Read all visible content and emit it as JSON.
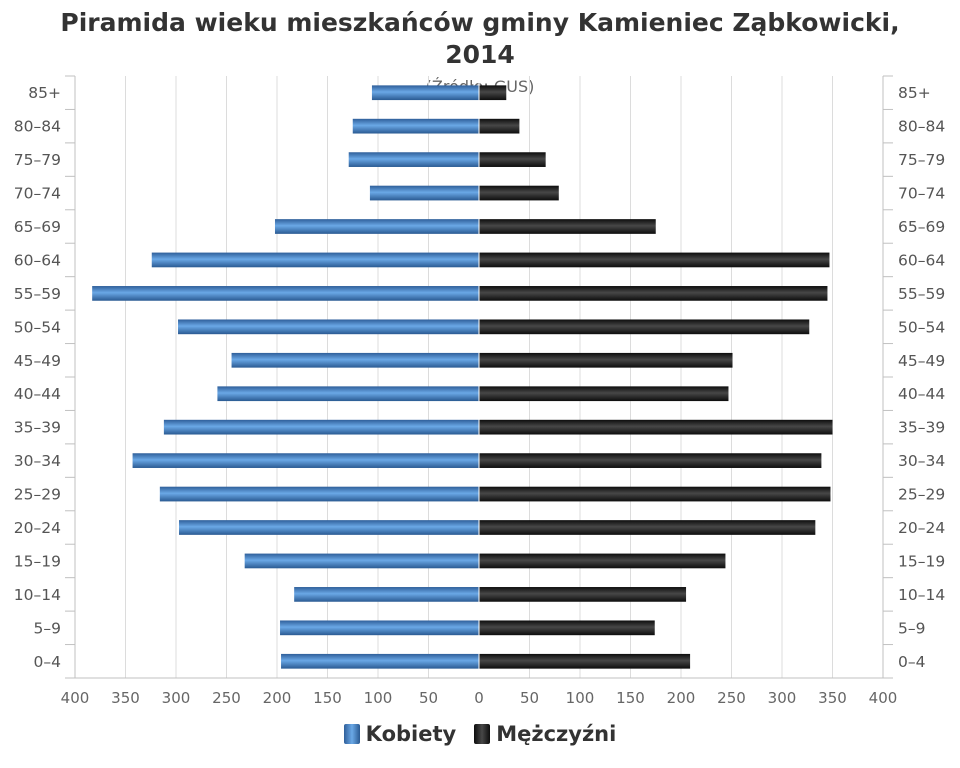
{
  "chart_data": {
    "type": "bar",
    "title_line1": "Piramida wieku mieszkańców gminy Kamieniec Ząbkowicki,",
    "title_line2": "2014",
    "subtitle": "(Źródło: GUS)",
    "categories": [
      "85+",
      "80-84",
      "75-79",
      "70-74",
      "65-69",
      "60-64",
      "55-59",
      "50-54",
      "45-49",
      "40-44",
      "35-39",
      "30-34",
      "25-29",
      "20-24",
      "15-19",
      "10-14",
      "5-9",
      "0-4"
    ],
    "category_labels": [
      "85+",
      "80–84",
      "75–79",
      "70–74",
      "65–69",
      "60–64",
      "55–59",
      "50–54",
      "45–49",
      "40–44",
      "35–39",
      "30–34",
      "25–29",
      "20–24",
      "15–19",
      "10–14",
      "5–9",
      "0–4"
    ],
    "series": [
      {
        "name": "Kobiety",
        "color": "#3a76b8",
        "values": [
          106,
          125,
          129,
          108,
          202,
          324,
          383,
          298,
          245,
          259,
          312,
          343,
          316,
          297,
          232,
          183,
          197,
          196
        ]
      },
      {
        "name": "Mężczyźni",
        "color": "#151515",
        "values": [
          27,
          40,
          66,
          79,
          175,
          347,
          345,
          327,
          251,
          247,
          350,
          339,
          348,
          333,
          244,
          205,
          174,
          209
        ]
      }
    ],
    "xlim": [
      -400,
      400
    ],
    "xticks": [
      "400",
      "350",
      "300",
      "250",
      "200",
      "150",
      "100",
      "50",
      "0",
      "50",
      "100",
      "150",
      "200",
      "250",
      "300",
      "350",
      "400"
    ],
    "grid": true,
    "legend": "bottom-center"
  }
}
